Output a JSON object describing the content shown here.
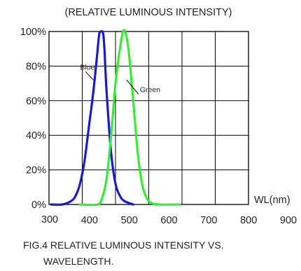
{
  "chart_data": {
    "type": "line",
    "title": "(RELATIVE LUMINOUS INTENSITY)",
    "xlabel": "WL(nm)",
    "ylabel": "",
    "x_tick_labels": [
      "300",
      "400",
      "500",
      "600",
      "700",
      "800",
      "900"
    ],
    "y_tick_labels": [
      "0%",
      "20%",
      "40%",
      "60%",
      "80%",
      "100%"
    ],
    "xlim": [
      350,
      800
    ],
    "ylim": [
      0,
      100
    ],
    "grid": true,
    "series": [
      {
        "name": "Blue",
        "color": "#1a1acc",
        "points": [
          [
            355,
            0
          ],
          [
            380,
            0
          ],
          [
            400,
            2
          ],
          [
            410,
            5
          ],
          [
            420,
            12
          ],
          [
            430,
            25
          ],
          [
            440,
            45
          ],
          [
            450,
            65
          ],
          [
            458,
            85
          ],
          [
            463,
            98
          ],
          [
            467,
            100
          ],
          [
            472,
            99
          ],
          [
            475,
            90
          ],
          [
            480,
            65
          ],
          [
            490,
            30
          ],
          [
            500,
            12
          ],
          [
            510,
            5
          ],
          [
            520,
            2
          ],
          [
            540,
            0
          ]
        ]
      },
      {
        "name": "Green",
        "color": "#33ee33",
        "points": [
          [
            420,
            0
          ],
          [
            460,
            0
          ],
          [
            470,
            4
          ],
          [
            480,
            15
          ],
          [
            490,
            40
          ],
          [
            500,
            70
          ],
          [
            510,
            90
          ],
          [
            517,
            100
          ],
          [
            523,
            99
          ],
          [
            530,
            88
          ],
          [
            540,
            60
          ],
          [
            550,
            30
          ],
          [
            560,
            12
          ],
          [
            570,
            4
          ],
          [
            580,
            1
          ],
          [
            600,
            0
          ],
          [
            645,
            0
          ]
        ]
      }
    ],
    "annotations": [
      {
        "text": "Blue",
        "at": [
          420,
          78
        ],
        "arrow_to": [
          450,
          72
        ]
      },
      {
        "text": "Green",
        "at": [
          555,
          65
        ],
        "arrow_to": [
          525,
          72
        ]
      }
    ]
  },
  "caption_lines": [
    "FIG.4 RELATIVE LUMINOUS INTENSITY VS.",
    "WAVELENGTH."
  ]
}
